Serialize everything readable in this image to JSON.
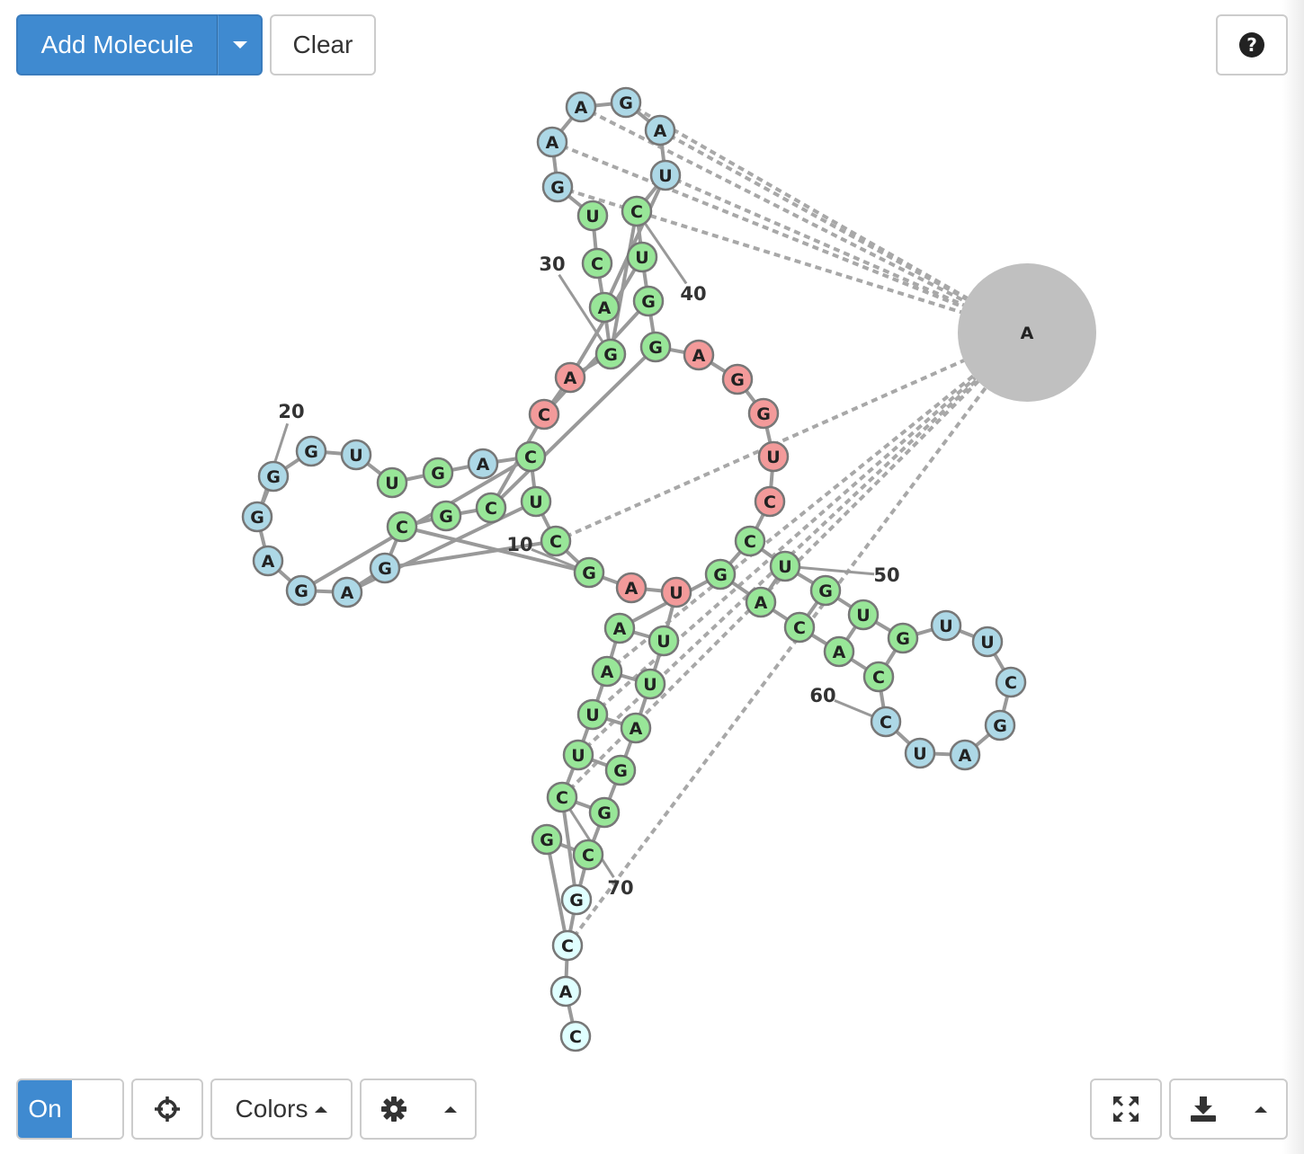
{
  "toolbar": {
    "add_molecule_label": "Add Molecule",
    "clear_label": "Clear",
    "help_glyph": "?"
  },
  "footer": {
    "toggle_label": "On",
    "colors_label": "Colors"
  },
  "icons": {
    "help": "question-circle-icon",
    "center": "crosshair-icon",
    "settings": "gear-icon",
    "fullscreen": "expand-icon",
    "download": "download-icon"
  },
  "colors": {
    "loop": "#add8e6",
    "stem": "#98e698",
    "junction": "#f39a9a",
    "tail": "#e0ffff",
    "protein": "#c0c0c0",
    "backbone": "#999999",
    "link": "#a8a8a8",
    "primary": "#3f8ad0"
  },
  "molecule": {
    "sequence": "GCGGAUUUAGCUCAGUUGGGAGAGCGCCAGACUGAAGAUCUGGAGGUCCUGUGUUCGAUCCACAGAAUUCGCACCA",
    "index_labels": [
      "10",
      "20",
      "30",
      "40",
      "50",
      "60",
      "70"
    ],
    "protein_label": "A"
  }
}
